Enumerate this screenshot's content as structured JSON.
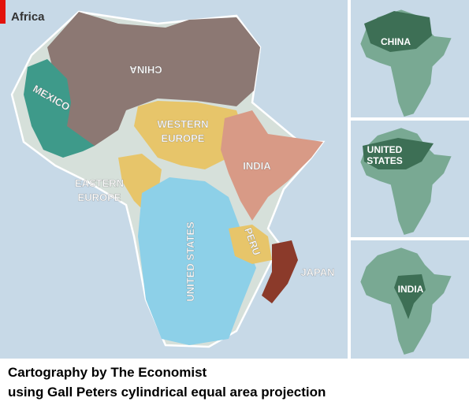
{
  "map": {
    "title": "Africa",
    "labels": [
      {
        "lines": [
          "CHINA"
        ]
      },
      {
        "lines": [
          "MEXICO"
        ]
      },
      {
        "lines": [
          "WESTERN",
          "EUROPE"
        ]
      },
      {
        "lines": [
          "INDIA"
        ]
      },
      {
        "lines": [
          "EASTERN",
          "EUROPE"
        ]
      },
      {
        "lines": [
          "UNITED STATES"
        ]
      },
      {
        "lines": [
          "PERU"
        ]
      },
      {
        "lines": [
          "JAPAN"
        ]
      }
    ]
  },
  "panels": [
    {
      "lines": [
        "CHINA"
      ]
    },
    {
      "lines": [
        "UNITED",
        "STATES"
      ]
    },
    {
      "lines": [
        "INDIA"
      ]
    }
  ],
  "caption": {
    "lines": [
      "Cartography by The Economist",
      "using Gall Peters cylindrical equal area projection"
    ]
  }
}
